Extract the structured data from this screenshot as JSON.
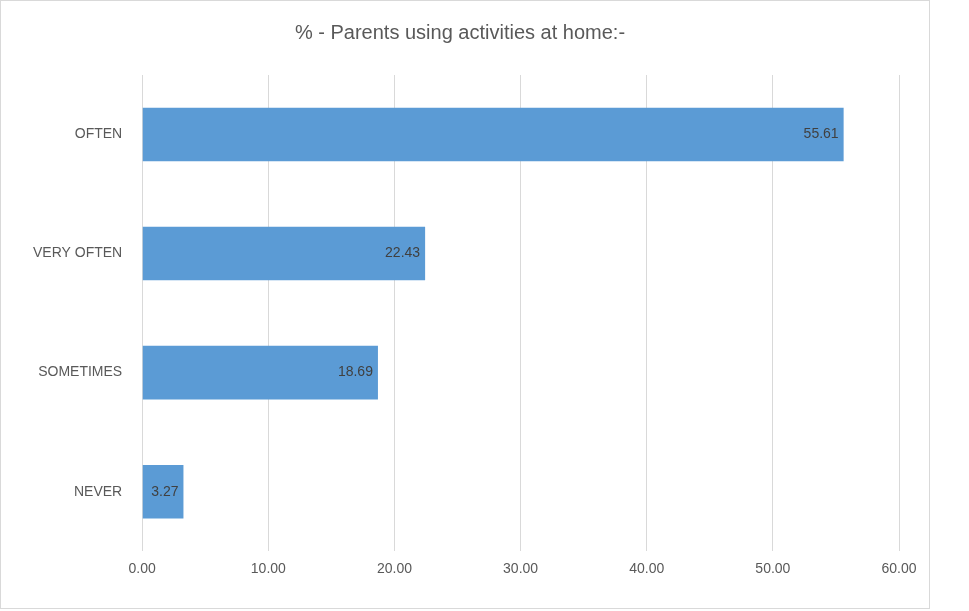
{
  "chart_data": {
    "type": "bar",
    "orientation": "horizontal",
    "title": "% - Parents using activities at home:-",
    "categories": [
      "OFTEN",
      "VERY OFTEN",
      "SOMETIMES",
      "NEVER"
    ],
    "values": [
      55.61,
      22.43,
      18.69,
      3.27
    ],
    "color": "#5b9bd5",
    "xlim": [
      0,
      60
    ],
    "xticks": [
      {
        "value": 0,
        "label": "0.00"
      },
      {
        "value": 10,
        "label": "10.00"
      },
      {
        "value": 20,
        "label": "20.00"
      },
      {
        "value": 30,
        "label": "30.00"
      },
      {
        "value": 40,
        "label": "40.00"
      },
      {
        "value": 50,
        "label": "50.00"
      },
      {
        "value": 60,
        "label": "60.00"
      }
    ],
    "grid": true,
    "data_labels": true
  }
}
